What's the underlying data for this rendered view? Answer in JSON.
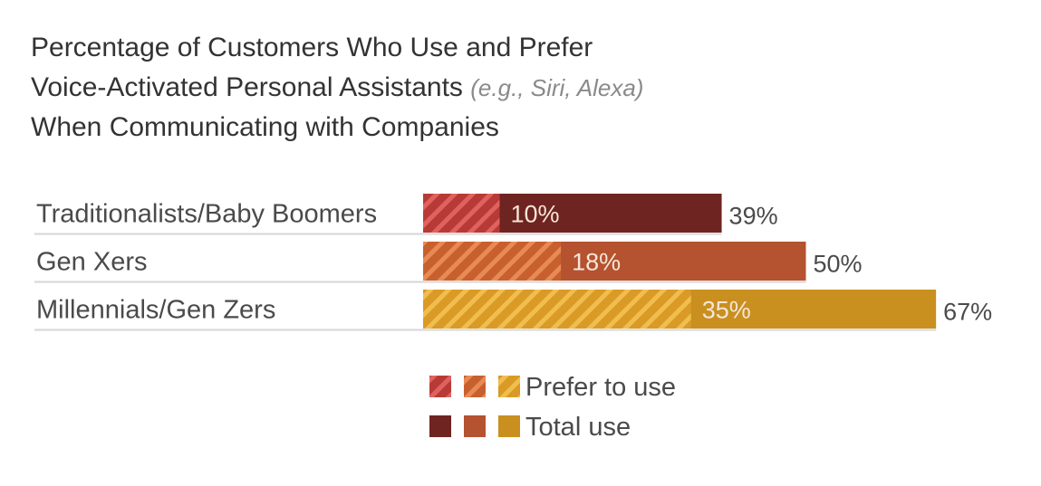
{
  "title_lines": [
    "Percentage of Customers Who Use and Prefer",
    "Voice-Activated Personal Assistants",
    "When Communicating with Companies"
  ],
  "title_note": "(e.g., Siri, Alexa)",
  "colors": {
    "label_text": "#4a4a4a",
    "divider": "#d6d6d6",
    "hatch_light": [
      "#e0625e",
      "#e88a55",
      "#f0bd4e"
    ]
  },
  "chart_data": {
    "type": "bar",
    "orientation": "horizontal",
    "categories": [
      "Traditionalists/Baby Boomers",
      "Gen Xers",
      "Millennials/Gen Zers"
    ],
    "series": [
      {
        "name": "Total use",
        "values": [
          39,
          50,
          67
        ],
        "colors": [
          "#6e2420",
          "#b5522f",
          "#c9901f"
        ]
      },
      {
        "name": "Prefer to use",
        "values": [
          10,
          18,
          35
        ],
        "pattern": "hatched",
        "colors": [
          "#b83a36",
          "#c8602e",
          "#d99a26"
        ]
      }
    ],
    "value_labels": {
      "total": [
        "39%",
        "50%",
        "67%"
      ],
      "prefer": [
        "10%",
        "18%",
        "35%"
      ]
    },
    "legend": {
      "placement": "bottom",
      "entries": [
        {
          "label": "Prefer to use",
          "pattern": "hatched"
        },
        {
          "label": "Total use",
          "pattern": "solid"
        }
      ]
    },
    "xlim": [
      0,
      100
    ],
    "grid": false
  }
}
